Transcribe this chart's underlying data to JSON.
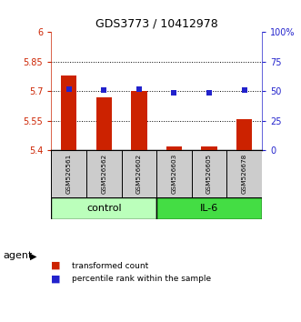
{
  "title": "GDS3773 / 10412978",
  "samples": [
    "GSM526561",
    "GSM526562",
    "GSM526602",
    "GSM526603",
    "GSM526605",
    "GSM526678"
  ],
  "bar_values": [
    5.78,
    5.67,
    5.7,
    5.42,
    5.42,
    5.56
  ],
  "dot_values": [
    52,
    51,
    52,
    49,
    49,
    51
  ],
  "ylim_left": [
    5.4,
    6.0
  ],
  "ylim_right": [
    0,
    100
  ],
  "yticks_left": [
    5.4,
    5.55,
    5.7,
    5.85,
    6.0
  ],
  "ytick_labels_left": [
    "5.4",
    "5.55",
    "5.7",
    "5.85",
    "6"
  ],
  "yticks_right": [
    0,
    25,
    50,
    75,
    100
  ],
  "ytick_labels_right": [
    "0",
    "25",
    "50",
    "75",
    "100%"
  ],
  "grid_lines": [
    5.55,
    5.7,
    5.85
  ],
  "bar_color": "#cc2200",
  "dot_color": "#2222cc",
  "control_label": "control",
  "il6_label": "IL-6",
  "control_color": "#bbffbb",
  "il6_color": "#44dd44",
  "agent_label": "agent",
  "legend_bar_label": "transformed count",
  "legend_dot_label": "percentile rank within the sample",
  "n_control": 3,
  "n_il6": 3,
  "bar_width": 0.45,
  "sample_box_color": "#cccccc",
  "figure_bg": "#ffffff"
}
